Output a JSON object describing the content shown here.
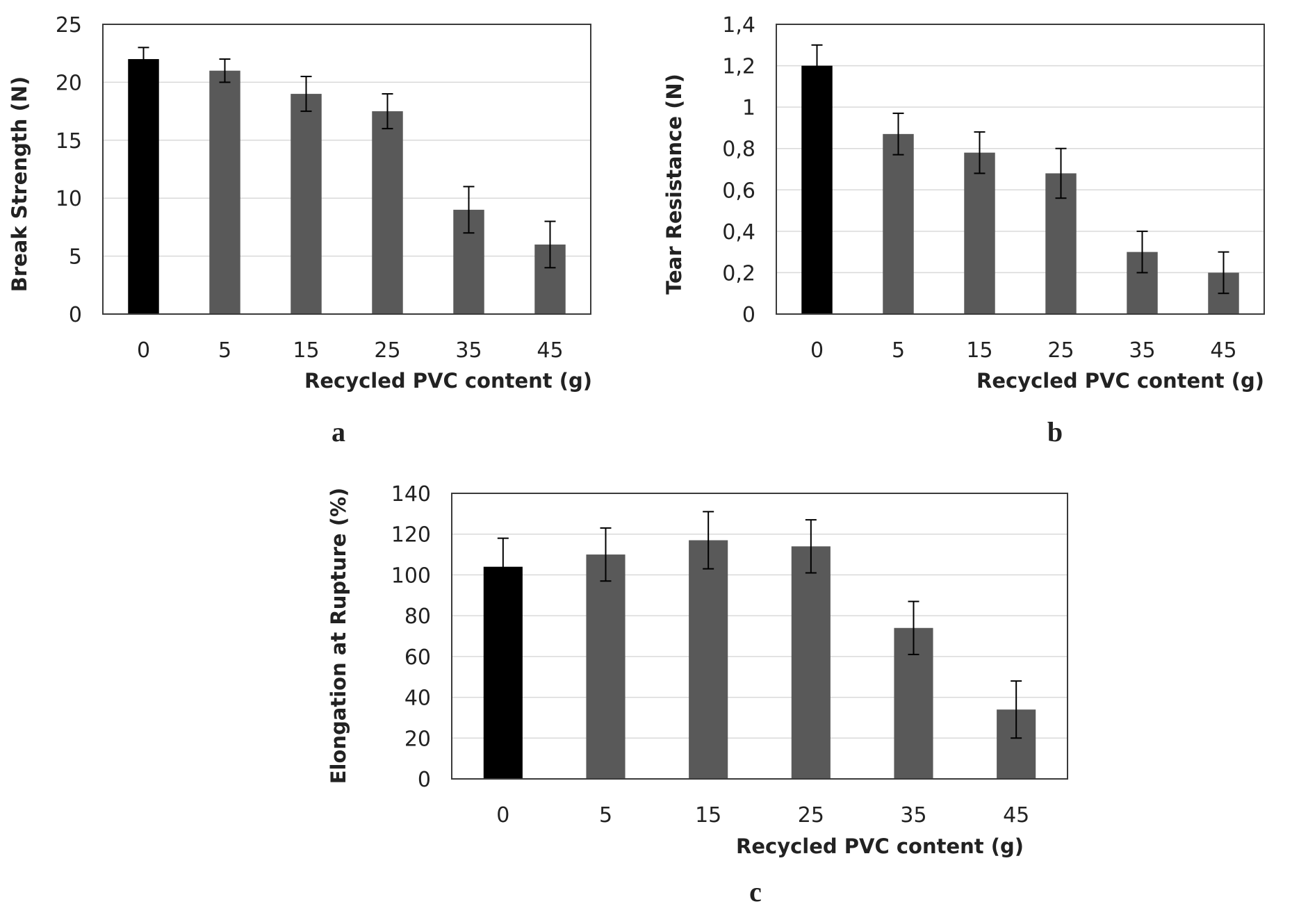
{
  "chart_data": [
    {
      "type": "bar",
      "panel": "a",
      "categories": [
        "0",
        "5",
        "15",
        "25",
        "35",
        "45"
      ],
      "values": [
        22,
        21,
        19,
        17.5,
        9,
        6
      ],
      "errors": [
        1.0,
        1.0,
        1.5,
        1.5,
        2.0,
        2.0
      ],
      "xlabel": "Recycled PVC content (g)",
      "ylabel": "Break Strength (N)",
      "ylim": [
        0,
        25
      ],
      "yticks": [
        "0",
        "5",
        "10",
        "15",
        "20",
        "25"
      ],
      "grid": true,
      "bar_colors": [
        "#000000",
        "#595959",
        "#595959",
        "#595959",
        "#595959",
        "#595959"
      ]
    },
    {
      "type": "bar",
      "panel": "b",
      "categories": [
        "0",
        "5",
        "15",
        "25",
        "35",
        "45"
      ],
      "values": [
        1.2,
        0.87,
        0.78,
        0.68,
        0.3,
        0.2
      ],
      "errors": [
        0.1,
        0.1,
        0.1,
        0.12,
        0.1,
        0.1
      ],
      "xlabel": "Recycled PVC content (g)",
      "ylabel": "Tear Resistance (N)",
      "ylim": [
        0,
        1.4
      ],
      "yticks": [
        "0",
        "0,2",
        "0,4",
        "0,6",
        "0,8",
        "1",
        "1,2",
        "1,4"
      ],
      "grid": true,
      "bar_colors": [
        "#000000",
        "#595959",
        "#595959",
        "#595959",
        "#595959",
        "#595959"
      ]
    },
    {
      "type": "bar",
      "panel": "c",
      "categories": [
        "0",
        "5",
        "15",
        "25",
        "35",
        "45"
      ],
      "values": [
        104,
        110,
        117,
        114,
        74,
        34
      ],
      "errors": [
        14,
        13,
        14,
        13,
        13,
        14
      ],
      "xlabel": "Recycled PVC content (g)",
      "ylabel": "Elongation at Rupture (%)",
      "ylim": [
        0,
        140
      ],
      "yticks": [
        "0",
        "20",
        "40",
        "60",
        "80",
        "100",
        "120",
        "140"
      ],
      "grid": true,
      "bar_colors": [
        "#000000",
        "#595959",
        "#595959",
        "#595959",
        "#595959",
        "#595959"
      ]
    }
  ]
}
